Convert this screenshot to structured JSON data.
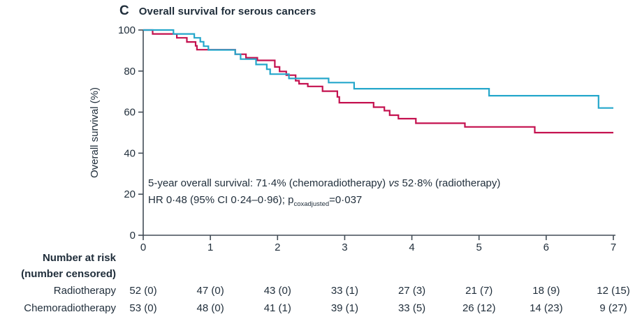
{
  "figure": {
    "panel_label": "C",
    "title": "Overall survival for serous cancers"
  },
  "colors": {
    "radiotherapy": "#c4114f",
    "chemoradiotherapy": "#25a7cb",
    "axis": "#424c56",
    "text": "#1f2d3a"
  },
  "annotation": {
    "line1_pre": "5-year overall survival: 71·4% (chemoradiotherapy) ",
    "line1_italic": "vs",
    "line1_post": " 52·8% (radiotherapy)",
    "line2_pre": "HR 0·48 (95% CI 0·24–0·96); p",
    "line2_sub": "coxadjusted",
    "line2_post": "=0·037"
  },
  "chart_data": {
    "type": "line",
    "subtype": "kaplan-meier-step",
    "title": "Overall survival for serous cancers",
    "xlabel": "",
    "ylabel": "Overall survival (%)",
    "xlim": [
      0,
      7
    ],
    "ylim": [
      0,
      100
    ],
    "x_ticks": [
      0,
      1,
      2,
      3,
      4,
      5,
      6,
      7
    ],
    "y_ticks": [
      0,
      20,
      40,
      60,
      80,
      100
    ],
    "legend": "none",
    "grid": false,
    "series": [
      {
        "name": "Radiotherapy",
        "color": "#c4114f",
        "points": [
          [
            0,
            100
          ],
          [
            0.14,
            98.1
          ],
          [
            0.5,
            96.2
          ],
          [
            0.65,
            94.2
          ],
          [
            0.78,
            92.3
          ],
          [
            0.8,
            90.4
          ],
          [
            1.37,
            88.2
          ],
          [
            1.53,
            86.5
          ],
          [
            1.7,
            85.2
          ],
          [
            1.96,
            82.0
          ],
          [
            2.03,
            79.8
          ],
          [
            2.13,
            78.0
          ],
          [
            2.27,
            75.3
          ],
          [
            2.32,
            73.8
          ],
          [
            2.45,
            72.5
          ],
          [
            2.67,
            70.2
          ],
          [
            2.89,
            67.4
          ],
          [
            2.92,
            64.6
          ],
          [
            3.43,
            62.4
          ],
          [
            3.59,
            60.7
          ],
          [
            3.67,
            58.5
          ],
          [
            3.8,
            56.8
          ],
          [
            4.06,
            54.6
          ],
          [
            4.79,
            52.8
          ],
          [
            5.83,
            50.0
          ],
          [
            7,
            50.0
          ]
        ]
      },
      {
        "name": "Chemoradiotherapy",
        "color": "#25a7cb",
        "points": [
          [
            0,
            100
          ],
          [
            0.45,
            98.1
          ],
          [
            0.76,
            96.2
          ],
          [
            0.85,
            94.3
          ],
          [
            0.9,
            92.1
          ],
          [
            0.97,
            90.3
          ],
          [
            1.37,
            88.2
          ],
          [
            1.45,
            85.8
          ],
          [
            1.68,
            83.2
          ],
          [
            1.84,
            80.9
          ],
          [
            1.89,
            78.5
          ],
          [
            2.17,
            76.4
          ],
          [
            2.76,
            74.4
          ],
          [
            3.14,
            71.4
          ],
          [
            5.15,
            68.0
          ],
          [
            6.78,
            62.0
          ],
          [
            7,
            62.0
          ]
        ]
      }
    ],
    "key_values": {
      "five_year_os_chemoradiotherapy_pct": 71.4,
      "five_year_os_radiotherapy_pct": 52.8,
      "hazard_ratio": "0·48",
      "ci_95": "0·24–0·96",
      "p_coxadjusted": "0·037"
    }
  },
  "risk_table": {
    "header_line1": "Number at risk",
    "header_line2": "(number censored)",
    "rows": [
      {
        "label": "Radiotherapy",
        "values": [
          "52 (0)",
          "47 (0)",
          "43 (0)",
          "33 (1)",
          "27 (3)",
          "21 (7)",
          "18 (9)",
          "12 (15)"
        ]
      },
      {
        "label": "Chemoradiotherapy",
        "values": [
          "53 (0)",
          "48 (0)",
          "41 (1)",
          "39 (1)",
          "33 (5)",
          "26 (12)",
          "14 (23)",
          "9 (27)"
        ]
      }
    ]
  }
}
